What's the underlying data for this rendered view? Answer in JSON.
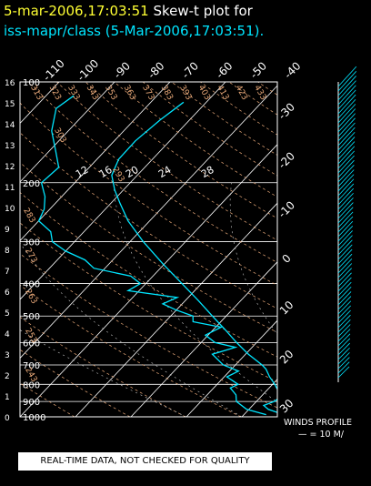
{
  "header": {
    "date_time": "5-mar-2006,17:03:51",
    "subtitle_text": " Skew-t plot for",
    "line2": "iss-mapr/class (5-Mar-2006,17:03:51)."
  },
  "notice": "REAL-TIME DATA, NOT CHECKED FOR QUALITY",
  "winds": {
    "label": "WINDS PROFILE",
    "scale": "— = 10 M/"
  },
  "chart_data": {
    "type": "line",
    "plot_kind": "skew-t log-p",
    "pressure_axis": {
      "ticks": [
        100,
        200,
        300,
        400,
        500,
        600,
        700,
        800,
        900,
        1000
      ],
      "ylim": [
        1000,
        100
      ]
    },
    "height_axis_km": {
      "ticks": [
        0,
        1,
        2,
        3,
        4,
        5,
        6,
        7,
        8,
        9,
        10,
        11,
        12,
        13,
        14,
        15,
        16
      ]
    },
    "temperature_axis_c": {
      "top_labels": [
        "-110",
        "-100",
        "-90",
        "-80",
        "-70",
        "-60",
        "-50",
        "-40"
      ],
      "right_labels": [
        "-30",
        "-20",
        "-10",
        "0",
        "10",
        "20",
        "30"
      ],
      "xlim_bottom": [
        -40,
        30
      ]
    },
    "dry_adiabat_labels": [
      "313",
      "323",
      "333",
      "343",
      "353",
      "363",
      "373",
      "383",
      "393",
      "403",
      "413",
      "423",
      "433",
      "303",
      "293",
      "283",
      "273",
      "263",
      "253",
      "243"
    ],
    "mixing_ratio_labels": [
      "12",
      "16",
      "20",
      "24",
      "28"
    ],
    "temperature_profile": [
      {
        "p": 985,
        "t": 7.2
      },
      {
        "p": 950,
        "t": 3.5
      },
      {
        "p": 925,
        "t": 2.0
      },
      {
        "p": 900,
        "t": 3.2
      },
      {
        "p": 860,
        "t": 3.8
      },
      {
        "p": 825,
        "t": 1.6
      },
      {
        "p": 800,
        "t": 0.4
      },
      {
        "p": 760,
        "t": -1.8
      },
      {
        "p": 720,
        "t": -3.8
      },
      {
        "p": 700,
        "t": -5.2
      },
      {
        "p": 650,
        "t": -9.5
      },
      {
        "p": 600,
        "t": -13.6
      },
      {
        "p": 550,
        "t": -17.8
      },
      {
        "p": 500,
        "t": -22.5
      },
      {
        "p": 450,
        "t": -27.6
      },
      {
        "p": 400,
        "t": -33.5
      },
      {
        "p": 350,
        "t": -40.2
      },
      {
        "p": 300,
        "t": -47.6
      },
      {
        "p": 260,
        "t": -53.9
      },
      {
        "p": 230,
        "t": -58.4
      },
      {
        "p": 210,
        "t": -61.6
      },
      {
        "p": 190,
        "t": -64.6
      },
      {
        "p": 170,
        "t": -66.1
      },
      {
        "p": 150,
        "t": -66.2
      },
      {
        "p": 130,
        "t": -65.3
      },
      {
        "p": 115,
        "t": -64.1
      }
    ],
    "dewpoint_profile": [
      {
        "p": 985,
        "t": 4.0
      },
      {
        "p": 950,
        "t": -0.4
      },
      {
        "p": 900,
        "t": -3.6
      },
      {
        "p": 860,
        "t": -4.8
      },
      {
        "p": 820,
        "t": -7.0
      },
      {
        "p": 800,
        "t": -6.2
      },
      {
        "p": 760,
        "t": -9.5
      },
      {
        "p": 730,
        "t": -8.4
      },
      {
        "p": 700,
        "t": -12.2
      },
      {
        "p": 650,
        "t": -16.0
      },
      {
        "p": 620,
        "t": -13.0
      },
      {
        "p": 600,
        "t": -17.5
      },
      {
        "p": 570,
        "t": -20.5
      },
      {
        "p": 540,
        "t": -19.0
      },
      {
        "p": 520,
        "t": -25.0
      },
      {
        "p": 500,
        "t": -26.0
      },
      {
        "p": 480,
        "t": -30.0
      },
      {
        "p": 460,
        "t": -33.5
      },
      {
        "p": 440,
        "t": -32.0
      },
      {
        "p": 420,
        "t": -42.0
      },
      {
        "p": 400,
        "t": -41.0
      },
      {
        "p": 380,
        "t": -44.0
      },
      {
        "p": 360,
        "t": -52.0
      },
      {
        "p": 340,
        "t": -55.0
      },
      {
        "p": 320,
        "t": -60.0
      },
      {
        "p": 300,
        "t": -64.0
      },
      {
        "p": 280,
        "t": -66.0
      },
      {
        "p": 260,
        "t": -70.0
      },
      {
        "p": 240,
        "t": -71.0
      },
      {
        "p": 220,
        "t": -73.0
      },
      {
        "p": 200,
        "t": -76.0
      },
      {
        "p": 180,
        "t": -75.5
      },
      {
        "p": 160,
        "t": -79.0
      },
      {
        "p": 140,
        "t": -83.0
      },
      {
        "p": 120,
        "t": -86.0
      },
      {
        "p": 110,
        "t": -85.0
      }
    ],
    "line_colors": {
      "sounding": "#00e5ff",
      "isotherm": "#ffffff",
      "isobar": "#ffffff",
      "adiabat": "#e8a878",
      "labels_white": "#ffffff"
    }
  }
}
